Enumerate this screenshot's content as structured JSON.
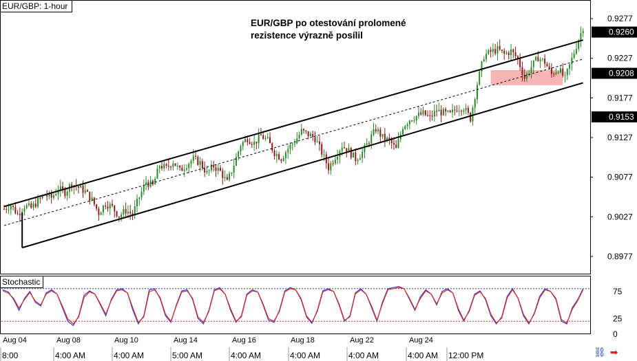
{
  "chart_data": [
    {
      "type": "candlestick",
      "title": "EUR/GBP: 1-hour",
      "annotation": [
        "EUR/GBP po otestování prolomené",
        "rezistence výrazně posílil"
      ],
      "y_ticks": [
        "0.9277",
        "0.9227",
        "0.9177",
        "0.9127",
        "0.9077",
        "0.9027",
        "0.8977"
      ],
      "y_ticks_values": [
        0.9277,
        0.9227,
        0.9177,
        0.9127,
        0.9077,
        0.9027,
        0.8977
      ],
      "highlighted_levels": [
        "0.9260",
        "0.9208",
        "0.9153"
      ],
      "highlighted_values": [
        0.926,
        0.9208,
        0.9153
      ],
      "ylim": [
        0.8957,
        0.9297
      ],
      "date_labels": [
        "Aug 04",
        "Aug 08",
        "Aug 10",
        "Aug 14",
        "Aug 16",
        "Aug 18",
        "Aug 22",
        "Aug 24"
      ],
      "time_labels": [
        "8:00",
        "4:00 AM",
        "4:00 AM",
        "5:00 AM",
        "4:00 AM",
        "4:00 AM",
        "4:00 AM",
        "4:00 AM",
        "12:00 PM"
      ],
      "price_path": [
        [
          0,
          0.9037
        ],
        [
          3,
          0.9042
        ],
        [
          6,
          0.903
        ],
        [
          9,
          0.9041
        ],
        [
          12,
          0.9038
        ],
        [
          15,
          0.9047
        ],
        [
          18,
          0.9055
        ],
        [
          21,
          0.9051
        ],
        [
          24,
          0.9062
        ],
        [
          27,
          0.9058
        ],
        [
          30,
          0.9069
        ],
        [
          33,
          0.9064
        ],
        [
          36,
          0.9059
        ],
        [
          39,
          0.9048
        ],
        [
          42,
          0.9032
        ],
        [
          45,
          0.9044
        ],
        [
          48,
          0.9039
        ],
        [
          51,
          0.9028
        ],
        [
          54,
          0.9035
        ],
        [
          57,
          0.903
        ],
        [
          60,
          0.9052
        ],
        [
          63,
          0.9071
        ],
        [
          66,
          0.9066
        ],
        [
          69,
          0.9092
        ],
        [
          72,
          0.9088
        ],
        [
          75,
          0.9097
        ],
        [
          78,
          0.9085
        ],
        [
          81,
          0.9093
        ],
        [
          84,
          0.91
        ],
        [
          87,
          0.9095
        ],
        [
          90,
          0.9082
        ],
        [
          93,
          0.9091
        ],
        [
          96,
          0.9084
        ],
        [
          99,
          0.907
        ],
        [
          102,
          0.9093
        ],
        [
          105,
          0.9118
        ],
        [
          108,
          0.9126
        ],
        [
          111,
          0.912
        ],
        [
          114,
          0.9129
        ],
        [
          117,
          0.9123
        ],
        [
          120,
          0.9108
        ],
        [
          123,
          0.9101
        ],
        [
          126,
          0.9113
        ],
        [
          129,
          0.9122
        ],
        [
          132,
          0.9135
        ],
        [
          135,
          0.9131
        ],
        [
          138,
          0.9126
        ],
        [
          141,
          0.9108
        ],
        [
          144,
          0.9089
        ],
        [
          147,
          0.9103
        ],
        [
          150,
          0.9117
        ],
        [
          153,
          0.911
        ],
        [
          156,
          0.91
        ],
        [
          159,
          0.9108
        ],
        [
          162,
          0.9123
        ],
        [
          165,
          0.9138
        ],
        [
          168,
          0.9127
        ],
        [
          171,
          0.9123
        ],
        [
          174,
          0.9112
        ],
        [
          177,
          0.9141
        ],
        [
          180,
          0.915
        ],
        [
          183,
          0.9154
        ],
        [
          186,
          0.9157
        ],
        [
          189,
          0.9152
        ],
        [
          192,
          0.9161
        ],
        [
          195,
          0.9158
        ],
        [
          198,
          0.9156
        ],
        [
          201,
          0.9164
        ],
        [
          204,
          0.9165
        ],
        [
          207,
          0.9151
        ],
        [
          210,
          0.9195
        ],
        [
          213,
          0.923
        ],
        [
          216,
          0.9235
        ],
        [
          219,
          0.9238
        ],
        [
          222,
          0.9232
        ],
        [
          225,
          0.9236
        ],
        [
          228,
          0.9226
        ],
        [
          231,
          0.9202
        ],
        [
          234,
          0.9216
        ],
        [
          237,
          0.9228
        ],
        [
          240,
          0.9222
        ],
        [
          243,
          0.9207
        ],
        [
          246,
          0.9214
        ],
        [
          249,
          0.9201
        ],
        [
          252,
          0.9226
        ],
        [
          255,
          0.9251
        ],
        [
          257,
          0.9266
        ]
      ],
      "channel": {
        "upper": [
          [
            0,
            0.904
          ],
          [
            257,
            0.925
          ]
        ],
        "middle": [
          [
            0,
            0.9016
          ],
          [
            257,
            0.9226
          ]
        ],
        "lower": [
          [
            8,
            0.8988
          ],
          [
            257,
            0.9196
          ]
        ]
      },
      "highlight_zone": {
        "x": [
          216,
          248
        ],
        "y": [
          0.9193,
          0.9212
        ],
        "color": "#f4a8a8"
      },
      "up_color": "#2a8a2a",
      "down_color": "#8b1a1a"
    },
    {
      "type": "line",
      "title": "Stochastic",
      "y_ticks": [
        "75",
        "25",
        "0"
      ],
      "y_ticks_values": [
        75,
        25,
        0
      ],
      "ylim": [
        0,
        100
      ],
      "levels": [
        {
          "value": 80,
          "color": "#3b3bd6"
        },
        {
          "value": 20,
          "color": "#d62a2a"
        }
      ],
      "series": [
        {
          "color": "#3b3bd6",
          "values": [
            78,
            74,
            60,
            40,
            62,
            75,
            55,
            48,
            72,
            78,
            70,
            45,
            20,
            12,
            30,
            68,
            76,
            70,
            50,
            30,
            60,
            78,
            80,
            72,
            40,
            15,
            30,
            78,
            80,
            62,
            30,
            18,
            50,
            76,
            78,
            60,
            25,
            15,
            40,
            78,
            82,
            70,
            40,
            18,
            30,
            70,
            78,
            74,
            50,
            22,
            18,
            40,
            76,
            82,
            78,
            60,
            28,
            16,
            40,
            76,
            80,
            75,
            50,
            20,
            30,
            72,
            80,
            70,
            45,
            20,
            55,
            80,
            82,
            84,
            80,
            60,
            40,
            65,
            78,
            70,
            50,
            75,
            80,
            72,
            40,
            20,
            40,
            70,
            76,
            60,
            30,
            15,
            28,
            66,
            80,
            62,
            30,
            15,
            35,
            66,
            80,
            75,
            60,
            20,
            15,
            45,
            60,
            80
          ]
        },
        {
          "color": "#d62a2a",
          "values": [
            76,
            72,
            62,
            44,
            60,
            73,
            57,
            50,
            70,
            76,
            70,
            48,
            24,
            15,
            28,
            64,
            74,
            70,
            52,
            33,
            58,
            76,
            78,
            72,
            44,
            18,
            28,
            74,
            78,
            64,
            33,
            20,
            48,
            74,
            76,
            62,
            28,
            18,
            38,
            76,
            80,
            70,
            43,
            20,
            28,
            68,
            76,
            74,
            52,
            25,
            20,
            38,
            74,
            80,
            78,
            62,
            30,
            18,
            38,
            74,
            78,
            75,
            52,
            22,
            28,
            70,
            78,
            70,
            48,
            22,
            52,
            78,
            80,
            82,
            80,
            62,
            42,
            62,
            76,
            70,
            52,
            72,
            78,
            72,
            43,
            22,
            38,
            68,
            74,
            62,
            33,
            17,
            26,
            63,
            78,
            63,
            33,
            17,
            33,
            63,
            78,
            75,
            62,
            23,
            17,
            42,
            58,
            78
          ]
        }
      ]
    }
  ]
}
